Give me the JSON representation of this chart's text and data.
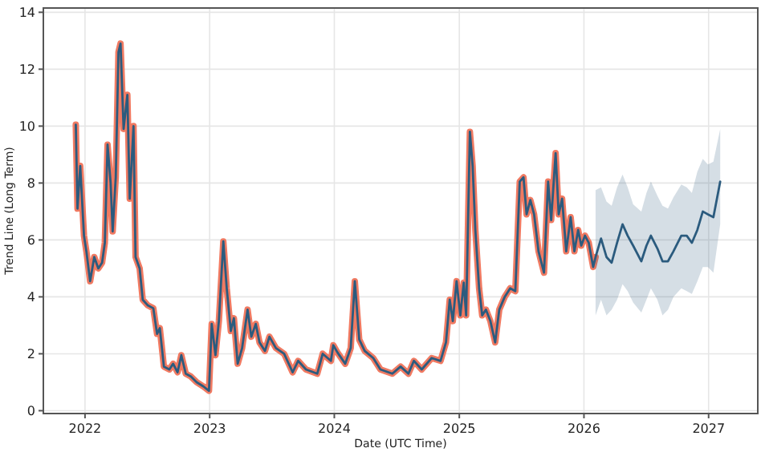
{
  "chart_data": {
    "type": "line",
    "xlabel": "Date (UTC Time)",
    "ylabel": "Trend Line (Long Term)",
    "xlim": [
      "2021-09-01",
      "2027-05-25"
    ],
    "xticks": [
      {
        "value": "2022-01-01",
        "label": "2022"
      },
      {
        "value": "2023-01-01",
        "label": "2023"
      },
      {
        "value": "2024-01-01",
        "label": "2024"
      },
      {
        "value": "2025-01-01",
        "label": "2025"
      },
      {
        "value": "2026-01-01",
        "label": "2026"
      },
      {
        "value": "2027-01-01",
        "label": "2027"
      }
    ],
    "ylim": [
      -0.1,
      14.15
    ],
    "yticks": [
      0,
      2,
      4,
      6,
      8,
      10,
      12,
      14
    ],
    "grid": true,
    "marker": "none",
    "line_style": "solid",
    "series": [
      {
        "color": "#f07a62",
        "x": [
          "2021-12-05",
          "2021-12-10",
          "2021-12-18",
          "2021-12-29",
          "2022-01-05",
          "2022-01-16",
          "2022-01-28",
          "2022-02-09",
          "2022-02-20",
          "2022-02-28",
          "2022-03-08",
          "2022-03-17",
          "2022-03-23",
          "2022-04-01",
          "2022-04-09",
          "2022-04-15",
          "2022-04-24",
          "2022-05-05",
          "2022-05-12",
          "2022-05-23",
          "2022-05-29",
          "2022-06-10",
          "2022-06-19",
          "2022-07-04",
          "2022-07-20",
          "2022-07-31",
          "2022-08-08",
          "2022-08-20",
          "2022-09-05",
          "2022-09-16",
          "2022-09-29",
          "2022-10-10",
          "2022-10-23",
          "2022-11-07",
          "2022-11-24",
          "2022-12-14",
          "2022-12-30",
          "2023-01-07",
          "2023-01-18",
          "2023-01-28",
          "2023-02-10",
          "2023-02-20",
          "2023-03-04",
          "2023-03-13",
          "2023-03-24",
          "2023-04-06",
          "2023-04-22",
          "2023-05-03",
          "2023-05-16",
          "2023-05-27",
          "2023-06-12",
          "2023-06-25",
          "2023-07-14",
          "2023-08-07",
          "2023-09-01",
          "2023-09-17",
          "2023-10-10",
          "2023-11-12",
          "2023-11-28",
          "2023-12-22",
          "2023-12-29",
          "2024-01-10",
          "2024-02-02",
          "2024-02-18",
          "2024-03-01",
          "2024-03-14",
          "2024-03-30",
          "2024-04-24",
          "2024-05-15",
          "2024-06-19",
          "2024-07-13",
          "2024-08-05",
          "2024-08-21",
          "2024-09-13",
          "2024-10-12",
          "2024-11-07",
          "2024-11-23",
          "2024-12-04",
          "2024-12-13",
          "2024-12-24",
          "2025-01-04",
          "2025-01-14",
          "2025-01-21",
          "2025-02-01",
          "2025-02-09",
          "2025-02-17",
          "2025-02-28",
          "2025-03-09",
          "2025-03-20",
          "2025-04-02",
          "2025-04-16",
          "2025-04-28",
          "2025-05-14",
          "2025-05-30",
          "2025-06-14",
          "2025-06-27",
          "2025-07-08",
          "2025-07-17",
          "2025-07-28",
          "2025-08-08",
          "2025-08-21",
          "2025-09-06",
          "2025-09-18",
          "2025-09-27",
          "2025-10-10",
          "2025-10-19",
          "2025-10-29",
          "2025-11-10",
          "2025-11-23",
          "2025-12-04",
          "2025-12-15",
          "2025-12-24",
          "2026-01-04",
          "2026-01-15",
          "2026-01-28",
          "2026-02-04"
        ],
        "values": [
          10.05,
          7.1,
          8.6,
          6.15,
          5.6,
          4.55,
          5.4,
          5.0,
          5.2,
          5.9,
          9.35,
          8.0,
          6.3,
          8.2,
          12.6,
          12.9,
          9.9,
          11.1,
          7.45,
          10.0,
          5.4,
          5.0,
          3.9,
          3.7,
          3.6,
          2.7,
          2.9,
          1.55,
          1.45,
          1.65,
          1.35,
          1.95,
          1.3,
          1.2,
          1.0,
          0.85,
          0.7,
          3.05,
          1.95,
          3.15,
          5.95,
          4.3,
          2.8,
          3.25,
          1.65,
          2.2,
          3.55,
          2.6,
          3.05,
          2.4,
          2.1,
          2.6,
          2.2,
          2.0,
          1.35,
          1.75,
          1.45,
          1.3,
          2.0,
          1.75,
          2.3,
          2.05,
          1.65,
          2.2,
          4.55,
          2.5,
          2.1,
          1.85,
          1.45,
          1.3,
          1.55,
          1.3,
          1.75,
          1.45,
          1.85,
          1.75,
          2.4,
          3.9,
          3.15,
          4.55,
          3.35,
          4.5,
          3.35,
          9.8,
          8.6,
          6.35,
          4.3,
          3.35,
          3.55,
          3.15,
          2.4,
          3.55,
          4.0,
          4.3,
          4.2,
          8.05,
          8.2,
          6.9,
          7.4,
          6.9,
          5.6,
          4.85,
          8.05,
          6.7,
          9.05,
          6.9,
          7.45,
          5.6,
          6.8,
          5.6,
          6.35,
          5.8,
          6.15,
          5.9,
          5.05,
          5.4
        ]
      },
      {
        "color": "#2b5b7e",
        "x": [
          "2021-12-05",
          "2021-12-10",
          "2021-12-18",
          "2021-12-29",
          "2022-01-05",
          "2022-01-16",
          "2022-01-28",
          "2022-02-09",
          "2022-02-20",
          "2022-02-28",
          "2022-03-08",
          "2022-03-17",
          "2022-03-23",
          "2022-04-01",
          "2022-04-09",
          "2022-04-15",
          "2022-04-24",
          "2022-05-05",
          "2022-05-12",
          "2022-05-23",
          "2022-05-29",
          "2022-06-10",
          "2022-06-19",
          "2022-07-04",
          "2022-07-20",
          "2022-07-31",
          "2022-08-08",
          "2022-08-20",
          "2022-09-05",
          "2022-09-16",
          "2022-09-29",
          "2022-10-10",
          "2022-10-23",
          "2022-11-07",
          "2022-11-24",
          "2022-12-14",
          "2022-12-30",
          "2023-01-07",
          "2023-01-18",
          "2023-01-28",
          "2023-02-10",
          "2023-02-20",
          "2023-03-04",
          "2023-03-13",
          "2023-03-24",
          "2023-04-06",
          "2023-04-22",
          "2023-05-03",
          "2023-05-16",
          "2023-05-27",
          "2023-06-12",
          "2023-06-25",
          "2023-07-14",
          "2023-08-07",
          "2023-09-01",
          "2023-09-17",
          "2023-10-10",
          "2023-11-12",
          "2023-11-28",
          "2023-12-22",
          "2023-12-29",
          "2024-01-10",
          "2024-02-02",
          "2024-02-18",
          "2024-03-01",
          "2024-03-14",
          "2024-03-30",
          "2024-04-24",
          "2024-05-15",
          "2024-06-19",
          "2024-07-13",
          "2024-08-05",
          "2024-08-21",
          "2024-09-13",
          "2024-10-12",
          "2024-11-07",
          "2024-11-23",
          "2024-12-04",
          "2024-12-13",
          "2024-12-24",
          "2025-01-04",
          "2025-01-14",
          "2025-01-21",
          "2025-02-01",
          "2025-02-09",
          "2025-02-17",
          "2025-02-28",
          "2025-03-09",
          "2025-03-20",
          "2025-04-02",
          "2025-04-16",
          "2025-04-28",
          "2025-05-14",
          "2025-05-30",
          "2025-06-14",
          "2025-06-27",
          "2025-07-08",
          "2025-07-17",
          "2025-07-28",
          "2025-08-08",
          "2025-08-21",
          "2025-09-06",
          "2025-09-18",
          "2025-09-27",
          "2025-10-10",
          "2025-10-19",
          "2025-10-29",
          "2025-11-10",
          "2025-11-23",
          "2025-12-04",
          "2025-12-15",
          "2025-12-24",
          "2026-01-04",
          "2026-01-15",
          "2026-01-28",
          "2026-02-04",
          "2026-02-20",
          "2026-03-08",
          "2026-03-23",
          "2026-04-08",
          "2026-04-24",
          "2026-05-09",
          "2026-05-25",
          "2026-06-18",
          "2026-07-03",
          "2026-07-16",
          "2026-08-04",
          "2026-08-19",
          "2026-09-04",
          "2026-09-20",
          "2026-10-13",
          "2026-10-29",
          "2026-11-13",
          "2026-11-29",
          "2026-12-15",
          "2026-12-30",
          "2027-01-15",
          "2027-02-04"
        ],
        "values": [
          10.05,
          7.1,
          8.6,
          6.15,
          5.6,
          4.55,
          5.4,
          5.0,
          5.2,
          5.9,
          9.35,
          8.0,
          6.3,
          8.2,
          12.6,
          12.9,
          9.9,
          11.1,
          7.45,
          10.0,
          5.4,
          5.0,
          3.9,
          3.7,
          3.6,
          2.7,
          2.9,
          1.55,
          1.45,
          1.65,
          1.35,
          1.95,
          1.3,
          1.2,
          1.0,
          0.85,
          0.7,
          3.05,
          1.95,
          3.15,
          5.95,
          4.3,
          2.8,
          3.25,
          1.65,
          2.2,
          3.55,
          2.6,
          3.05,
          2.4,
          2.1,
          2.6,
          2.2,
          2.0,
          1.35,
          1.75,
          1.45,
          1.3,
          2.0,
          1.75,
          2.3,
          2.05,
          1.65,
          2.2,
          4.55,
          2.5,
          2.1,
          1.85,
          1.45,
          1.3,
          1.55,
          1.3,
          1.75,
          1.45,
          1.85,
          1.75,
          2.4,
          3.9,
          3.15,
          4.55,
          3.35,
          4.5,
          3.35,
          9.8,
          8.6,
          6.35,
          4.3,
          3.35,
          3.55,
          3.15,
          2.4,
          3.55,
          4.0,
          4.3,
          4.2,
          8.05,
          8.2,
          6.9,
          7.4,
          6.9,
          5.6,
          4.85,
          8.05,
          6.7,
          9.05,
          6.9,
          7.45,
          5.6,
          6.8,
          5.6,
          6.35,
          5.8,
          6.15,
          5.9,
          5.05,
          5.4,
          6.05,
          5.4,
          5.2,
          5.9,
          6.55,
          6.15,
          5.8,
          5.25,
          5.8,
          6.15,
          5.7,
          5.25,
          5.25,
          5.6,
          6.15,
          6.15,
          5.9,
          6.35,
          7.0,
          6.9,
          6.8,
          8.05
        ],
        "lower": [
          null,
          null,
          null,
          null,
          null,
          null,
          null,
          null,
          null,
          null,
          null,
          null,
          null,
          null,
          null,
          null,
          null,
          null,
          null,
          null,
          null,
          null,
          null,
          null,
          null,
          null,
          null,
          null,
          null,
          null,
          null,
          null,
          null,
          null,
          null,
          null,
          null,
          null,
          null,
          null,
          null,
          null,
          null,
          null,
          null,
          null,
          null,
          null,
          null,
          null,
          null,
          null,
          null,
          null,
          null,
          null,
          null,
          null,
          null,
          null,
          null,
          null,
          null,
          null,
          null,
          null,
          null,
          null,
          null,
          null,
          null,
          null,
          null,
          null,
          null,
          null,
          null,
          null,
          null,
          null,
          null,
          null,
          null,
          null,
          null,
          null,
          null,
          null,
          null,
          null,
          null,
          null,
          null,
          null,
          null,
          null,
          null,
          null,
          null,
          null,
          null,
          null,
          null,
          null,
          null,
          null,
          null,
          null,
          null,
          null,
          null,
          null,
          null,
          null,
          null,
          3.35,
          3.9,
          3.35,
          3.55,
          3.9,
          4.45,
          4.2,
          3.8,
          3.45,
          3.9,
          4.3,
          3.9,
          3.35,
          3.55,
          4.0,
          4.3,
          4.2,
          4.1,
          4.55,
          5.05,
          5.05,
          4.85,
          6.55
        ],
        "upper": [
          null,
          null,
          null,
          null,
          null,
          null,
          null,
          null,
          null,
          null,
          null,
          null,
          null,
          null,
          null,
          null,
          null,
          null,
          null,
          null,
          null,
          null,
          null,
          null,
          null,
          null,
          null,
          null,
          null,
          null,
          null,
          null,
          null,
          null,
          null,
          null,
          null,
          null,
          null,
          null,
          null,
          null,
          null,
          null,
          null,
          null,
          null,
          null,
          null,
          null,
          null,
          null,
          null,
          null,
          null,
          null,
          null,
          null,
          null,
          null,
          null,
          null,
          null,
          null,
          null,
          null,
          null,
          null,
          null,
          null,
          null,
          null,
          null,
          null,
          null,
          null,
          null,
          null,
          null,
          null,
          null,
          null,
          null,
          null,
          null,
          null,
          null,
          null,
          null,
          null,
          null,
          null,
          null,
          null,
          null,
          null,
          null,
          null,
          null,
          null,
          null,
          null,
          null,
          null,
          null,
          null,
          null,
          null,
          null,
          null,
          null,
          null,
          null,
          null,
          null,
          7.75,
          7.85,
          7.35,
          7.2,
          7.85,
          8.3,
          7.85,
          7.25,
          7.0,
          7.65,
          8.05,
          7.55,
          7.2,
          7.1,
          7.5,
          7.95,
          7.85,
          7.65,
          8.4,
          8.85,
          8.65,
          8.75,
          9.9
        ]
      }
    ]
  }
}
